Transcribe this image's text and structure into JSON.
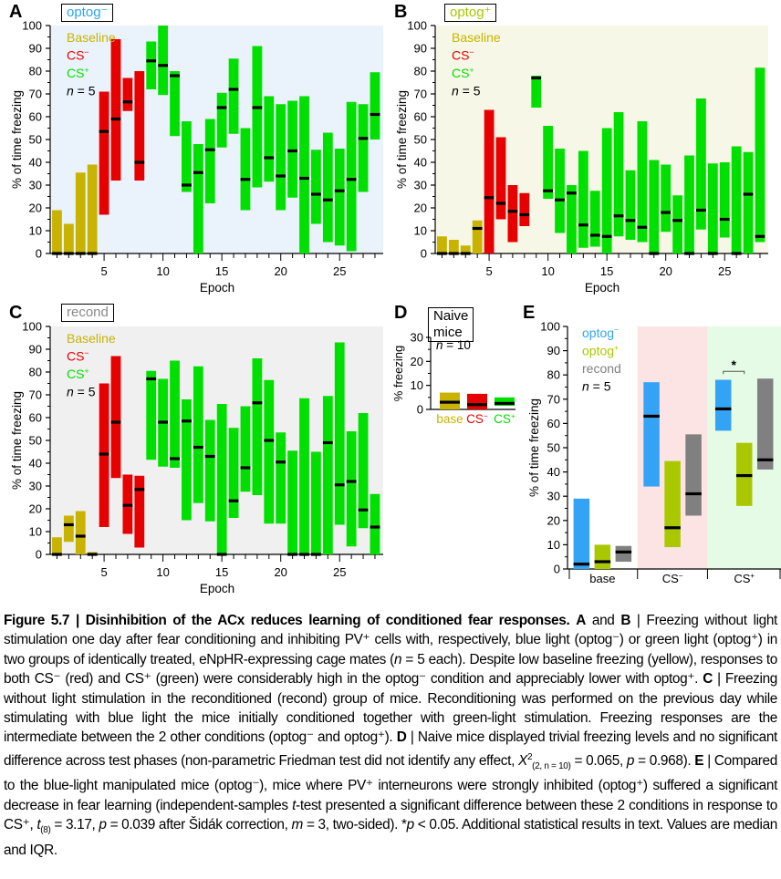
{
  "chart_data": [
    {
      "panel": "A",
      "type": "bar",
      "condition_label": "optog−",
      "condition_color": "#2aa4f4",
      "background": "#eaf3fc",
      "xlabel": "Epoch",
      "ylabel": "% of time freezing",
      "ylim": [
        0,
        100
      ],
      "yticks": [
        0,
        10,
        20,
        30,
        40,
        50,
        60,
        70,
        80,
        90,
        100
      ],
      "xticks": [
        5,
        10,
        15,
        20,
        25
      ],
      "xlim": [
        0,
        28
      ],
      "legend": [
        {
          "label": "Baseline",
          "color": "#c8b400"
        },
        {
          "label": "CS−",
          "color": "#e60000"
        },
        {
          "label": "CS+",
          "color": "#00e000"
        },
        {
          "label": "n = 5",
          "color": "#000000"
        }
      ],
      "phases": {
        "baseline": [
          1,
          2,
          3,
          4
        ],
        "cs_minus": [
          5,
          6,
          7,
          8
        ],
        "cs_plus_from": 9
      },
      "epochs": [
        {
          "x": 1,
          "q1": 0,
          "q3": 19,
          "median": 0
        },
        {
          "x": 2,
          "q1": 0,
          "q3": 13,
          "median": 0
        },
        {
          "x": 3,
          "q1": 0,
          "q3": 35.5,
          "median": 0
        },
        {
          "x": 4,
          "q1": 0,
          "q3": 39,
          "median": 0
        },
        {
          "x": 5,
          "q1": 17,
          "q3": 71,
          "median": 53.5
        },
        {
          "x": 6,
          "q1": 32,
          "q3": 94,
          "median": 59
        },
        {
          "x": 7,
          "q1": 62.5,
          "q3": 77,
          "median": 66.5
        },
        {
          "x": 8,
          "q1": 32,
          "q3": 80,
          "median": 40
        },
        {
          "x": 9,
          "q1": 72,
          "q3": 93,
          "median": 84.5
        },
        {
          "x": 10,
          "q1": 69.5,
          "q3": 100,
          "median": 82.5
        },
        {
          "x": 11,
          "q1": 51.5,
          "q3": 80,
          "median": 78
        },
        {
          "x": 12,
          "q1": 27,
          "q3": 58,
          "median": 30
        },
        {
          "x": 13,
          "q1": 0,
          "q3": 48,
          "median": 35.5
        },
        {
          "x": 14,
          "q1": 22,
          "q3": 59,
          "median": 45.5
        },
        {
          "x": 15,
          "q1": 46.5,
          "q3": 70.5,
          "median": 64
        },
        {
          "x": 16,
          "q1": 52.5,
          "q3": 85.5,
          "median": 72
        },
        {
          "x": 17,
          "q1": 19,
          "q3": 55,
          "median": 32.5
        },
        {
          "x": 18,
          "q1": 29,
          "q3": 91,
          "median": 64
        },
        {
          "x": 19,
          "q1": 31.5,
          "q3": 69,
          "median": 42
        },
        {
          "x": 20,
          "q1": 19,
          "q3": 65.5,
          "median": 34
        },
        {
          "x": 21,
          "q1": 24.5,
          "q3": 67,
          "median": 45
        },
        {
          "x": 22,
          "q1": 0,
          "q3": 69,
          "median": 33
        },
        {
          "x": 23,
          "q1": 13,
          "q3": 45.5,
          "median": 26
        },
        {
          "x": 24,
          "q1": 5,
          "q3": 53,
          "median": 23.5
        },
        {
          "x": 25,
          "q1": 3.5,
          "q3": 46,
          "median": 27.5
        },
        {
          "x": 26,
          "q1": 1,
          "q3": 66.5,
          "median": 32.5
        },
        {
          "x": 27,
          "q1": 27,
          "q3": 65.5,
          "median": 50.5
        },
        {
          "x": 28,
          "q1": 50,
          "q3": 79.5,
          "median": 61
        }
      ]
    },
    {
      "panel": "B",
      "type": "bar",
      "condition_label": "optog+",
      "condition_color": "#a8c800",
      "background": "#f6f7e6",
      "xlabel": "Epoch",
      "ylabel": "% of time freezing",
      "ylim": [
        0,
        100
      ],
      "yticks": [
        0,
        10,
        20,
        30,
        40,
        50,
        60,
        70,
        80,
        90,
        100
      ],
      "xticks": [
        5,
        10,
        15,
        20,
        25
      ],
      "xlim": [
        0,
        28
      ],
      "legend": [
        {
          "label": "Baseline",
          "color": "#c8b400"
        },
        {
          "label": "CS−",
          "color": "#e60000"
        },
        {
          "label": "CS+",
          "color": "#00e000"
        },
        {
          "label": "n = 5",
          "color": "#000000"
        }
      ],
      "phases": {
        "baseline": [
          1,
          2,
          3,
          4
        ],
        "cs_minus": [
          5,
          6,
          7,
          8
        ],
        "cs_plus_from": 9
      },
      "epochs": [
        {
          "x": 1,
          "q1": 0,
          "q3": 7.5,
          "median": 0
        },
        {
          "x": 2,
          "q1": 0,
          "q3": 6,
          "median": 0
        },
        {
          "x": 3,
          "q1": 0,
          "q3": 3.5,
          "median": 0
        },
        {
          "x": 4,
          "q1": 0,
          "q3": 14.5,
          "median": 11
        },
        {
          "x": 5,
          "q1": 0,
          "q3": 63,
          "median": 24.5
        },
        {
          "x": 6,
          "q1": 15,
          "q3": 51,
          "median": 22
        },
        {
          "x": 7,
          "q1": 5,
          "q3": 30,
          "median": 18.5
        },
        {
          "x": 8,
          "q1": 12,
          "q3": 26.5,
          "median": 17
        },
        {
          "x": 9,
          "q1": 64,
          "q3": 78,
          "median": 77
        },
        {
          "x": 10,
          "q1": 24,
          "q3": 56,
          "median": 27.5
        },
        {
          "x": 11,
          "q1": 9,
          "q3": 46,
          "median": 23.5
        },
        {
          "x": 12,
          "q1": 0,
          "q3": 30,
          "median": 26.5
        },
        {
          "x": 13,
          "q1": 2.5,
          "q3": 45,
          "median": 12.5
        },
        {
          "x": 14,
          "q1": 3,
          "q3": 27.5,
          "median": 8
        },
        {
          "x": 15,
          "q1": 0,
          "q3": 55,
          "median": 7.5
        },
        {
          "x": 16,
          "q1": 7.5,
          "q3": 62,
          "median": 16.5
        },
        {
          "x": 17,
          "q1": 6,
          "q3": 36.5,
          "median": 14.5
        },
        {
          "x": 18,
          "q1": 5,
          "q3": 58,
          "median": 11.5
        },
        {
          "x": 19,
          "q1": 0,
          "q3": 41,
          "median": 0
        },
        {
          "x": 20,
          "q1": 9.5,
          "q3": 39,
          "median": 18
        },
        {
          "x": 21,
          "q1": 0,
          "q3": 25.5,
          "median": 14.5
        },
        {
          "x": 22,
          "q1": 0,
          "q3": 43,
          "median": 0
        },
        {
          "x": 23,
          "q1": 10.5,
          "q3": 68,
          "median": 19
        },
        {
          "x": 24,
          "q1": 0,
          "q3": 39.5,
          "median": 0
        },
        {
          "x": 25,
          "q1": 7,
          "q3": 40,
          "median": 15
        },
        {
          "x": 26,
          "q1": 0,
          "q3": 47,
          "median": 0
        },
        {
          "x": 27,
          "q1": 0,
          "q3": 44.5,
          "median": 26
        },
        {
          "x": 28,
          "q1": 5,
          "q3": 81.5,
          "median": 7.5
        }
      ]
    },
    {
      "panel": "C",
      "type": "bar",
      "condition_label": "recond",
      "condition_color": "#8a8a8a",
      "background": "#f0f0f0",
      "xlabel": "Epoch",
      "ylabel": "% of time freezing",
      "ylim": [
        0,
        100
      ],
      "yticks": [
        0,
        10,
        20,
        30,
        40,
        50,
        60,
        70,
        80,
        90,
        100
      ],
      "xticks": [
        5,
        10,
        15,
        20,
        25
      ],
      "xlim": [
        0,
        28
      ],
      "legend": [
        {
          "label": "Baseline",
          "color": "#c8b400"
        },
        {
          "label": "CS−",
          "color": "#e60000"
        },
        {
          "label": "CS+",
          "color": "#00e000"
        },
        {
          "label": "n = 5",
          "color": "#000000"
        }
      ],
      "phases": {
        "baseline": [
          1,
          2,
          3,
          4
        ],
        "cs_minus": [
          5,
          6,
          7,
          8
        ],
        "cs_plus_from": 9
      },
      "epochs": [
        {
          "x": 1,
          "q1": 0,
          "q3": 7.5,
          "median": 0
        },
        {
          "x": 2,
          "q1": 5.5,
          "q3": 17,
          "median": 13
        },
        {
          "x": 3,
          "q1": 0,
          "q3": 19,
          "median": 8
        },
        {
          "x": 4,
          "q1": 0,
          "q3": 1,
          "median": 0
        },
        {
          "x": 5,
          "q1": 12,
          "q3": 75,
          "median": 44
        },
        {
          "x": 6,
          "q1": 33.5,
          "q3": 87,
          "median": 58
        },
        {
          "x": 7,
          "q1": 9,
          "q3": 35,
          "median": 21.5
        },
        {
          "x": 8,
          "q1": 3,
          "q3": 34.5,
          "median": 28.5
        },
        {
          "x": 9,
          "q1": 41.5,
          "q3": 80.5,
          "median": 77
        },
        {
          "x": 10,
          "q1": 38.5,
          "q3": 77,
          "median": 58
        },
        {
          "x": 11,
          "q1": 38,
          "q3": 85,
          "median": 42
        },
        {
          "x": 12,
          "q1": 15,
          "q3": 68,
          "median": 58.5
        },
        {
          "x": 13,
          "q1": 22.5,
          "q3": 82.5,
          "median": 47
        },
        {
          "x": 14,
          "q1": 14.5,
          "q3": 59,
          "median": 43
        },
        {
          "x": 15,
          "q1": 0,
          "q3": 66,
          "median": 0
        },
        {
          "x": 16,
          "q1": 16,
          "q3": 55.5,
          "median": 23.5
        },
        {
          "x": 17,
          "q1": 27.5,
          "q3": 65,
          "median": 38
        },
        {
          "x": 18,
          "q1": 26,
          "q3": 86,
          "median": 66.5
        },
        {
          "x": 19,
          "q1": 13.5,
          "q3": 76.5,
          "median": 50
        },
        {
          "x": 20,
          "q1": 13.5,
          "q3": 53.5,
          "median": 40.5
        },
        {
          "x": 21,
          "q1": 0,
          "q3": 45.5,
          "median": 0
        },
        {
          "x": 22,
          "q1": 0,
          "q3": 68.5,
          "median": 0
        },
        {
          "x": 23,
          "q1": 0,
          "q3": 45,
          "median": 0
        },
        {
          "x": 24,
          "q1": 0,
          "q3": 69.5,
          "median": 49
        },
        {
          "x": 25,
          "q1": 13,
          "q3": 93,
          "median": 30.5
        },
        {
          "x": 26,
          "q1": 3.5,
          "q3": 54,
          "median": 32
        },
        {
          "x": 27,
          "q1": 11.5,
          "q3": 62,
          "median": 19.5
        },
        {
          "x": 28,
          "q1": 0,
          "q3": 26.5,
          "median": 12
        }
      ]
    },
    {
      "panel": "D",
      "type": "bar",
      "title": "Naive mice",
      "ylabel": "% freezing",
      "ylim": [
        0,
        30
      ],
      "yticks": [
        0,
        10,
        20,
        30
      ],
      "annotation": "n = 10",
      "categories": [
        "base",
        "CS−",
        "CS+"
      ],
      "category_colors": [
        "#c8b400",
        "#e60000",
        "#00e000"
      ],
      "series": [
        {
          "name": "naive",
          "values": [
            {
              "q1": 0,
              "q3": 7,
              "median": 3
            },
            {
              "q1": 0,
              "q3": 6.5,
              "median": 2
            },
            {
              "q1": 1.5,
              "q3": 5,
              "median": 2.5
            }
          ]
        }
      ]
    },
    {
      "panel": "E",
      "type": "bar",
      "ylabel": "% of time freezing",
      "ylim": [
        0,
        100
      ],
      "yticks": [
        0,
        10,
        20,
        30,
        40,
        50,
        60,
        70,
        80,
        90,
        100
      ],
      "categories": [
        "base",
        "CS−",
        "CS+"
      ],
      "category_backgrounds": [
        "#ffffff",
        "#fde4e4",
        "#e6fbe6"
      ],
      "legend": [
        {
          "label": "optog−",
          "color": "#33a3f5"
        },
        {
          "label": "optog+",
          "color": "#aac800"
        },
        {
          "label": "recond",
          "color": "#808080"
        },
        {
          "label": "n = 5",
          "color": "#000000"
        }
      ],
      "series": [
        {
          "name": "optog−",
          "color": "#33a3f5",
          "values": [
            {
              "q1": 0,
              "q3": 29,
              "median": 2
            },
            {
              "q1": 34,
              "q3": 77,
              "median": 63
            },
            {
              "q1": 57,
              "q3": 78,
              "median": 66
            }
          ]
        },
        {
          "name": "optog+",
          "color": "#aac800",
          "values": [
            {
              "q1": 0,
              "q3": 10,
              "median": 3
            },
            {
              "q1": 9,
              "q3": 44.5,
              "median": 17
            },
            {
              "q1": 26,
              "q3": 52,
              "median": 38.5
            }
          ]
        },
        {
          "name": "recond",
          "color": "#808080",
          "values": [
            {
              "q1": 3,
              "q3": 9.5,
              "median": 7
            },
            {
              "q1": 22,
              "q3": 55.5,
              "median": 31
            },
            {
              "q1": 41,
              "q3": 78.5,
              "median": 45
            }
          ]
        }
      ],
      "annotations": [
        {
          "text": "*",
          "between": [
            "optog−",
            "optog+"
          ],
          "category": "CS+"
        }
      ]
    }
  ],
  "panels": {
    "A": {
      "letter": "A",
      "box": "optog⁻"
    },
    "B": {
      "letter": "B",
      "box": "optog⁺"
    },
    "C": {
      "letter": "C",
      "box": "recond"
    },
    "D": {
      "letter": "D",
      "box": "Naive mice"
    },
    "E": {
      "letter": "E"
    }
  },
  "caption": {
    "title": "Figure 5.7 | Disinhibition of the ACx reduces learning of conditioned fear responses.",
    "body_html_parts": [
      {
        "b": "A"
      },
      {
        "t": " and "
      },
      {
        "b": "B"
      },
      {
        "t": " | Freezing without light stimulation one day after fear conditioning and inhibiting PV⁺ cells with, respectively, blue light (optog⁻) or green light (optog⁺) in two groups of identically treated, eNpHR-expressing cage mates ("
      },
      {
        "i": "n"
      },
      {
        "t": " = 5 each). Despite low baseline freezing (yellow), responses to both CS⁻ (red) and CS⁺ (green) were considerably high in the optog⁻ condition and appreciably lower with optog⁺. "
      },
      {
        "b": "C"
      },
      {
        "t": " | Freezing without light stimulation in the reconditioned (recond) group of mice. Reconditioning was performed on the previous day while stimulating with blue light the mice initially conditioned together with green-light stimulation. Freezing responses are the intermediate between the 2 other conditions (optog⁻ and optog⁺). "
      },
      {
        "b": "D"
      },
      {
        "t": " | Naive mice displayed trivial freezing levels and no significant difference across test phases (non-parametric Friedman test did not identify any effect, "
      },
      {
        "i": "X"
      },
      {
        "sup": "2"
      },
      {
        "sub": "(2, n = 10)"
      },
      {
        "t": " = 0.065, "
      },
      {
        "i": "p"
      },
      {
        "t": " = 0.968). "
      },
      {
        "b": "E"
      },
      {
        "t": " | Compared to the blue-light manipulated mice (optog⁻), mice where PV⁺ interneurons were strongly inhibited (optog⁺) suffered a significant decrease in fear learning (independent-samples "
      },
      {
        "i": "t"
      },
      {
        "t": "-test presented a significant difference between these 2 conditions in response to CS⁺, "
      },
      {
        "i": "t"
      },
      {
        "sub": "(8)"
      },
      {
        "t": " = 3.17, "
      },
      {
        "i": "p"
      },
      {
        "t": " = 0.039 after Šidák correction, "
      },
      {
        "i": "m"
      },
      {
        "t": " = 3, two-sided). *"
      },
      {
        "i": "p"
      },
      {
        "t": " < 0.05. Additional statistical results in text. Values are median and IQR."
      }
    ]
  }
}
